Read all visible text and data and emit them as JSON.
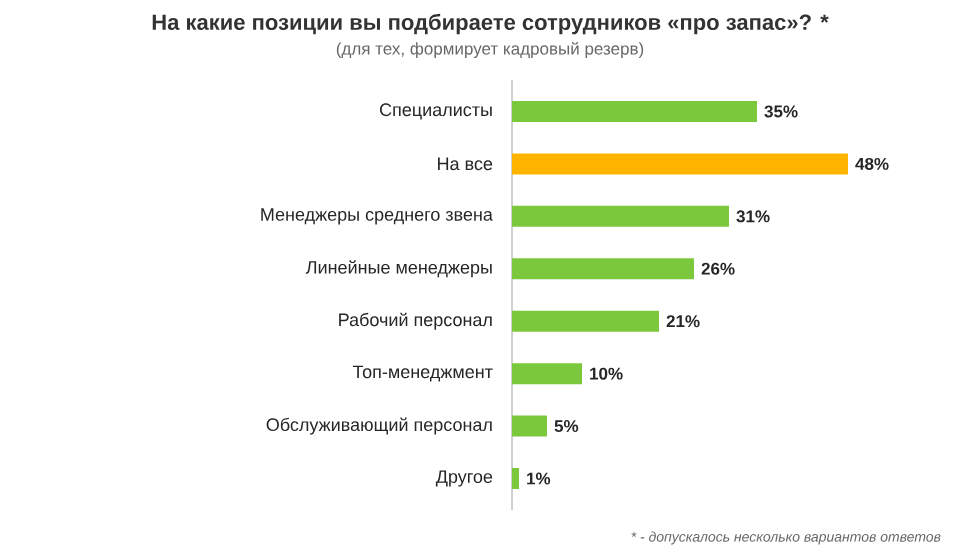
{
  "chart_data": {
    "type": "bar",
    "orientation": "horizontal",
    "title": "На какие позиции вы подбираете сотрудников «про запас»? *",
    "subtitle": "(для тех, формирует кадровый резерв)",
    "categories": [
      "Специалисты",
      "На все",
      "Менеджеры среднего звена",
      "Линейные менеджеры",
      "Рабочий персонал",
      "Топ-менеджмент",
      "Обслуживающий персонал",
      "Другое"
    ],
    "values": [
      35,
      48,
      31,
      26,
      21,
      10,
      5,
      1
    ],
    "value_labels": [
      "35%",
      "48%",
      "31%",
      "26%",
      "21%",
      "10%",
      "5%",
      "1%"
    ],
    "colors": [
      "#7cc83c",
      "#ffb400",
      "#7cc83c",
      "#7cc83c",
      "#7cc83c",
      "#7cc83c",
      "#7cc83c",
      "#7cc83c"
    ],
    "annotations": [
      "* - допускалось несколько вариантов ответов"
    ]
  }
}
